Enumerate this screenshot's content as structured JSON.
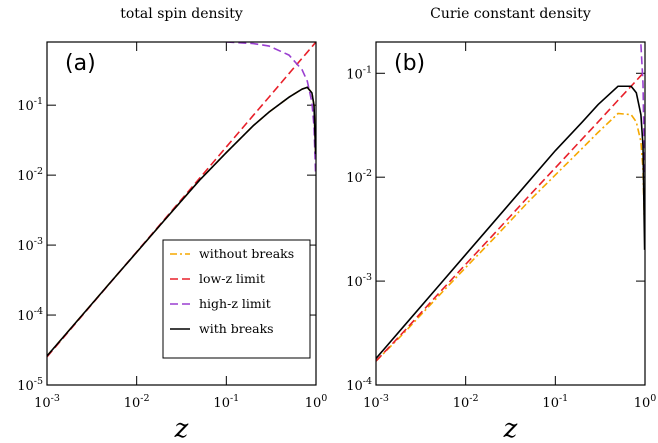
{
  "chart_data": [
    {
      "type": "line",
      "title": "total spin density",
      "annotation": "(a)",
      "xlabel": "z",
      "x": [
        0.001,
        0.002,
        0.005,
        0.01,
        0.02,
        0.05,
        0.1,
        0.2,
        0.3,
        0.5,
        0.7,
        0.8,
        0.9,
        0.95,
        0.99
      ],
      "xlog": true,
      "ylog": true,
      "xlim": [
        0.001,
        1
      ],
      "ylim": [
        1e-05,
        0.8
      ],
      "xticks": [
        {
          "value": 0.001,
          "label": "10^-3"
        },
        {
          "value": 0.01,
          "label": "10^-2"
        },
        {
          "value": 0.1,
          "label": "10^-1"
        },
        {
          "value": 1,
          "label": "10^0"
        }
      ],
      "yticks": [
        {
          "value": 1e-05,
          "label": "10^-5"
        },
        {
          "value": 0.0001,
          "label": "10^-4"
        },
        {
          "value": 0.001,
          "label": "10^-3"
        },
        {
          "value": 0.01,
          "label": "10^-2"
        },
        {
          "value": 0.1,
          "label": "10^-1"
        }
      ],
      "legend": "lower right",
      "series": [
        {
          "name": "without breaks",
          "color": "#f5a800",
          "style": "dashdot",
          "values": [
            2.6e-05,
            7.3e-05,
            0.000285,
            0.00079,
            0.0022,
            0.0084,
            0.021,
            0.051,
            0.08,
            0.13,
            0.17,
            0.18,
            0.15,
            0.1,
            0.02
          ]
        },
        {
          "name": "low-z limit",
          "color": "#e8202a",
          "style": "dashed",
          "values": [
            2.53e-05,
            7.16e-05,
            0.000283,
            0.0008,
            0.00226,
            0.00894,
            0.0253,
            0.0716,
            0.131,
            0.283,
            0.469,
            0.572,
            0.683,
            0.741,
            0.788
          ]
        },
        {
          "name": "high-z limit",
          "color": "#9a3fd0",
          "style": "dashed",
          "values": [
            null,
            null,
            null,
            null,
            null,
            null,
            0.8,
            0.76,
            0.7,
            0.52,
            0.32,
            0.22,
            0.11,
            0.05,
            0.01
          ]
        },
        {
          "name": "with breaks",
          "color": "#000000",
          "style": "solid",
          "values": [
            2.6e-05,
            7.3e-05,
            0.000285,
            0.00079,
            0.0022,
            0.0084,
            0.021,
            0.051,
            0.08,
            0.13,
            0.17,
            0.18,
            0.15,
            0.1,
            0.02
          ]
        }
      ]
    },
    {
      "type": "line",
      "title": "Curie constant density",
      "annotation": "(b)",
      "xlabel": "z",
      "x": [
        0.001,
        0.002,
        0.005,
        0.01,
        0.02,
        0.05,
        0.1,
        0.2,
        0.3,
        0.5,
        0.7,
        0.8,
        0.9,
        0.95,
        0.99
      ],
      "xlog": true,
      "ylog": true,
      "xlim": [
        0.001,
        1
      ],
      "ylim": [
        0.0001,
        0.2
      ],
      "xticks": [
        {
          "value": 0.001,
          "label": "10^-3"
        },
        {
          "value": 0.01,
          "label": "10^-2"
        },
        {
          "value": 0.1,
          "label": "10^-1"
        },
        {
          "value": 1,
          "label": "10^0"
        }
      ],
      "yticks": [
        {
          "value": 0.0001,
          "label": "10^-4"
        },
        {
          "value": 0.001,
          "label": "10^-3"
        },
        {
          "value": 0.01,
          "label": "10^-2"
        },
        {
          "value": 0.1,
          "label": "10^-1"
        }
      ],
      "series": [
        {
          "name": "without breaks",
          "color": "#f5a800",
          "style": "dashdot",
          "values": [
            0.00017,
            0.00031,
            0.00072,
            0.00135,
            0.0025,
            0.0058,
            0.0105,
            0.019,
            0.027,
            0.041,
            0.04,
            0.034,
            0.022,
            0.012,
            0.003
          ]
        },
        {
          "name": "low-z limit",
          "color": "#e8202a",
          "style": "dashed",
          "values": [
            0.00017,
            0.00032,
            0.00076,
            0.00145,
            0.00275,
            0.0065,
            0.0123,
            0.0234,
            0.034,
            0.055,
            0.075,
            0.085,
            0.095,
            0.1,
            0.104
          ]
        },
        {
          "name": "high-z limit",
          "color": "#9a3fd0",
          "style": "dashed",
          "values": [
            null,
            null,
            null,
            null,
            null,
            null,
            null,
            null,
            null,
            null,
            null,
            null,
            0.19,
            0.08,
            0.01
          ]
        },
        {
          "name": "with breaks",
          "color": "#000000",
          "style": "solid",
          "values": [
            0.00018,
            0.00036,
            0.0009,
            0.0018,
            0.0036,
            0.009,
            0.018,
            0.034,
            0.05,
            0.075,
            0.075,
            0.065,
            0.04,
            0.02,
            0.002
          ]
        }
      ]
    }
  ]
}
